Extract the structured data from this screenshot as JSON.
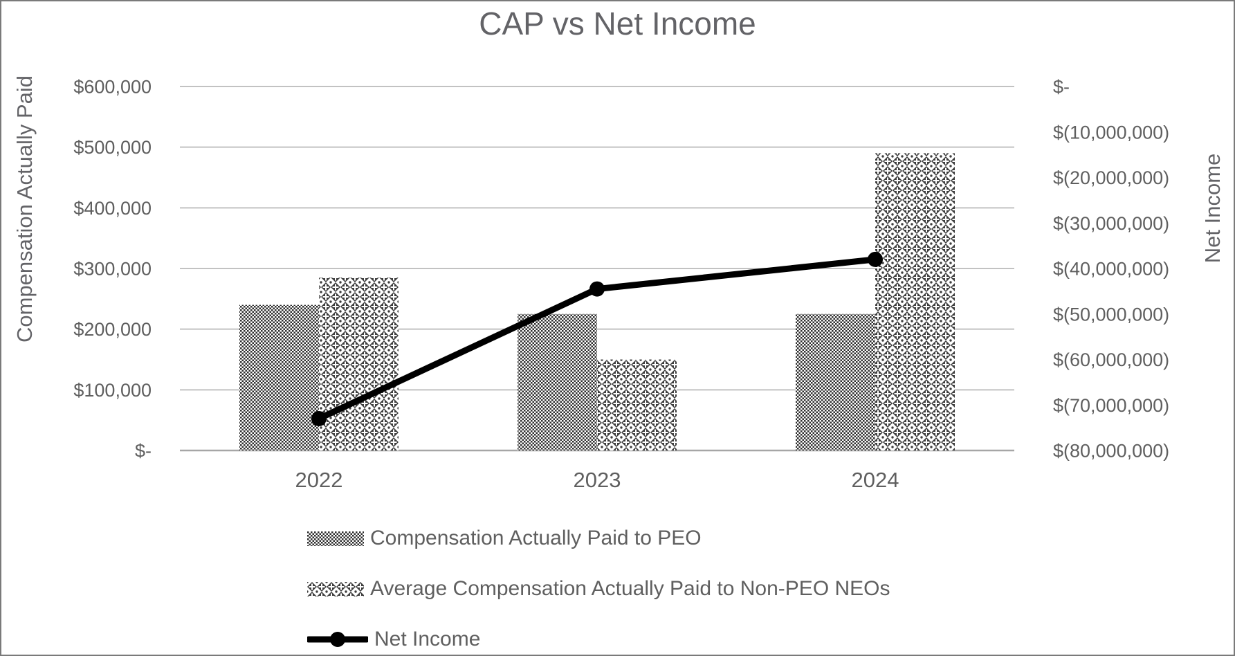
{
  "chart_data": {
    "type": "bar+line-combo",
    "title": "CAP vs Net Income",
    "categories": [
      "2022",
      "2023",
      "2024"
    ],
    "series": [
      {
        "name": "Compensation Actually Paid to PEO",
        "type": "bar",
        "axis": "left",
        "pattern": "dark-checker",
        "values": [
          240000,
          225000,
          225000
        ]
      },
      {
        "name": "Average Compensation Actually Paid to Non-PEO NEOs",
        "type": "bar",
        "axis": "left",
        "pattern": "dotted-diamond",
        "values": [
          285000,
          150000,
          490000
        ]
      },
      {
        "name": "Net Income",
        "type": "line",
        "axis": "right",
        "color": "#000000",
        "values": [
          -73000000,
          -44500000,
          -38000000
        ]
      }
    ],
    "axes": {
      "left": {
        "label": "Compensation Actually Paid",
        "min": 0,
        "max": 600000,
        "tick_step": 100000,
        "tick_labels_bottom_up": [
          "$-",
          "$100,000",
          "$200,000",
          "$300,000",
          "$400,000",
          "$500,000",
          "$600,000"
        ]
      },
      "right": {
        "label": "Net Income",
        "min": -80000000,
        "max": 0,
        "tick_step": 10000000,
        "tick_labels_top_down": [
          "$-",
          "$(10,000,000)",
          "$(20,000,000)",
          "$(30,000,000)",
          "$(40,000,000)",
          "$(50,000,000)",
          "$(60,000,000)",
          "$(70,000,000)",
          "$(80,000,000)"
        ]
      }
    },
    "grid": true,
    "legend_position": "bottom-left"
  },
  "colors": {
    "text": "#5f5f5f",
    "title": "#636367",
    "gridline": "#c2c2c2",
    "baseline": "#a6a6a6",
    "bar_pattern_ink": "#2f2f2f",
    "line_series": "#000000",
    "frame_border": "#7a7a7a",
    "background": "#ffffff"
  }
}
